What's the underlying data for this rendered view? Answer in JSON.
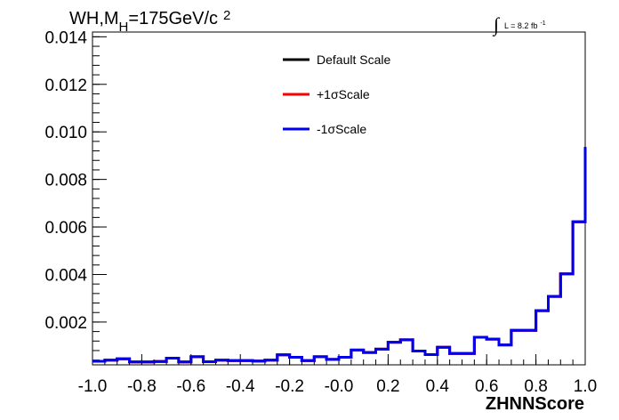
{
  "chart_data": {
    "type": "line",
    "title_parts": {
      "main": "WH,M",
      "sub": "H",
      "rest": "=175GeV/c",
      "sup": "2"
    },
    "lumi": {
      "symbol": "∫",
      "text": "L = 8.2 fb",
      "sup": "-1"
    },
    "xlabel": "ZHNNScore",
    "ylabel": "",
    "xlim": [
      -1.0,
      1.0
    ],
    "ylim": [
      0.0002,
      0.0142
    ],
    "x_ticks": [
      -1.0,
      -0.8,
      -0.6,
      -0.4,
      -0.2,
      0.0,
      0.2,
      0.4,
      0.6,
      0.8,
      1.0
    ],
    "x_tick_labels": [
      "-1.0",
      "-0.8",
      "-0.6",
      "-0.4",
      "-0.2",
      "-0.0",
      "0.2",
      "0.4",
      "0.6",
      "0.8",
      "1.0"
    ],
    "y_ticks": [
      0.002,
      0.004,
      0.006,
      0.008,
      0.01,
      0.012,
      0.014
    ],
    "y_tick_labels": [
      "0.002",
      "0.004",
      "0.006",
      "0.008",
      "0.010",
      "0.012",
      "0.014"
    ],
    "bin_edges": [
      -1.0,
      -0.95,
      -0.9,
      -0.85,
      -0.8,
      -0.75,
      -0.7,
      -0.65,
      -0.6,
      -0.55,
      -0.5,
      -0.45,
      -0.4,
      -0.35,
      -0.3,
      -0.25,
      -0.2,
      -0.15,
      -0.1,
      -0.05,
      0.0,
      0.05,
      0.1,
      0.15,
      0.2,
      0.25,
      0.3,
      0.35,
      0.4,
      0.45,
      0.5,
      0.55,
      0.6,
      0.65,
      0.7,
      0.75,
      0.8,
      0.85,
      0.9,
      0.95,
      1.0
    ],
    "series": [
      {
        "name": "Default Scale",
        "color": "#000000",
        "values": [
          0.00035,
          0.0004,
          0.00045,
          0.00032,
          0.00032,
          0.00034,
          0.00048,
          0.00032,
          0.00054,
          0.00033,
          0.0004,
          0.00038,
          0.00038,
          0.00036,
          0.0004,
          0.00062,
          0.00052,
          0.00038,
          0.00054,
          0.00043,
          0.00052,
          0.00082,
          0.00072,
          0.00086,
          0.00115,
          0.00125,
          0.00078,
          0.00063,
          0.00094,
          0.00068,
          0.00068,
          0.00136,
          0.00128,
          0.00104,
          0.00165,
          0.00165,
          0.00248,
          0.00308,
          0.00403,
          0.00622,
          0.00936
        ]
      },
      {
        "name": "+1σScale",
        "color": "#ff0000",
        "values": [
          0.00035,
          0.0004,
          0.00045,
          0.00032,
          0.00032,
          0.00034,
          0.00048,
          0.00032,
          0.00054,
          0.00033,
          0.0004,
          0.00038,
          0.00038,
          0.00036,
          0.0004,
          0.00062,
          0.00052,
          0.00038,
          0.00054,
          0.00043,
          0.00052,
          0.00082,
          0.00072,
          0.00086,
          0.00115,
          0.00125,
          0.00078,
          0.00063,
          0.00094,
          0.00068,
          0.00068,
          0.00136,
          0.00128,
          0.00104,
          0.00165,
          0.00165,
          0.00248,
          0.00308,
          0.00403,
          0.00622,
          0.00936
        ]
      },
      {
        "name": "-1σScale",
        "color": "#0000ee",
        "values": [
          0.00035,
          0.0004,
          0.00045,
          0.00032,
          0.00032,
          0.00034,
          0.00048,
          0.00032,
          0.00054,
          0.00033,
          0.0004,
          0.00038,
          0.00038,
          0.00036,
          0.0004,
          0.00062,
          0.00052,
          0.00038,
          0.00054,
          0.00043,
          0.00052,
          0.00082,
          0.00072,
          0.00086,
          0.00115,
          0.00125,
          0.00078,
          0.00063,
          0.00094,
          0.00068,
          0.00068,
          0.00136,
          0.00128,
          0.00104,
          0.00165,
          0.00165,
          0.00248,
          0.00308,
          0.00403,
          0.00622,
          0.00936
        ]
      }
    ],
    "grid": false,
    "legend_position": "top-center"
  }
}
